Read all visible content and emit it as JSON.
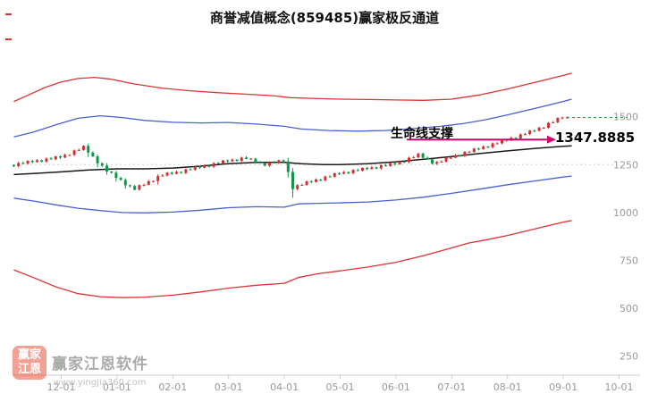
{
  "page": {
    "title": "商誉减值概念(859485)赢家极反通道"
  },
  "annotation": {
    "label": "生命线支撑",
    "price": "1347.8885"
  },
  "watermark": {
    "seal_top": "赢家",
    "seal_bottom": "江恩",
    "name": "赢家江恩软件",
    "url": "www.yingjia360.com"
  },
  "colors": {
    "up_candle": "#d03030",
    "down_candle": "#0f9648",
    "red_channel": "#dd3333",
    "blue_channel": "#4a5fd0",
    "lifeline": "#1a1a1a",
    "current_price": "#1fa84a",
    "arrow": "#d6006b",
    "axis_text": "#999999",
    "axis_line": "#cccccc"
  },
  "chart_data": {
    "type": "candlestick",
    "title": "商誉减值概念(859485)赢家极反通道",
    "x_ticks": [
      "12-01",
      "01-01",
      "02-01",
      "03-01",
      "04-01",
      "05-01",
      "06-01",
      "07-01",
      "08-01",
      "09-01",
      "10-01"
    ],
    "y_ticks": [
      1500,
      1250,
      1000,
      750,
      500,
      250
    ],
    "y_range_displayed": [
      150,
      1900
    ],
    "grid_dotted_level": 1250,
    "current_price_line": 1496,
    "lifeline_value": 1347.8885,
    "candles_start_month_offset": -0.85,
    "candles_per_month": 12,
    "first_open": 1248,
    "closes": [
      1242,
      1259,
      1255,
      1270,
      1264,
      1273,
      1266,
      1282,
      1278,
      1293,
      1287,
      1301,
      1301,
      1324,
      1327,
      1348,
      1313,
      1293,
      1257,
      1245,
      1214,
      1208,
      1181,
      1170,
      1142,
      1138,
      1119,
      1143,
      1145,
      1163,
      1164,
      1190,
      1193,
      1208,
      1202,
      1212,
      1207,
      1225,
      1223,
      1239,
      1234,
      1245,
      1239,
      1258,
      1255,
      1272,
      1267,
      1276,
      1270,
      1287,
      1280,
      1281,
      1262,
      1257,
      1245,
      1262,
      1258,
      1273,
      1267,
      1211,
      1122,
      1143,
      1144,
      1163,
      1160,
      1172,
      1168,
      1188,
      1187,
      1205,
      1202,
      1211,
      1205,
      1222,
      1218,
      1233,
      1227,
      1236,
      1230,
      1247,
      1243,
      1258,
      1252,
      1266,
      1264,
      1286,
      1288,
      1308,
      1286,
      1278,
      1255,
      1264,
      1266,
      1286,
      1286,
      1299,
      1296,
      1316,
      1316,
      1334,
      1331,
      1344,
      1341,
      1361,
      1361,
      1379,
      1376,
      1390,
      1387,
      1408,
      1409,
      1428,
      1426,
      1442,
      1443,
      1468,
      1471,
      1494,
      1496,
      1496
    ],
    "series_lines": {
      "upper_red": [
        [
          -0.85,
          1580
        ],
        [
          -0.6,
          1612
        ],
        [
          -0.3,
          1652
        ],
        [
          0,
          1682
        ],
        [
          0.3,
          1700
        ],
        [
          0.6,
          1706
        ],
        [
          0.9,
          1696
        ],
        [
          1.3,
          1672
        ],
        [
          1.8,
          1650
        ],
        [
          2.3,
          1636
        ],
        [
          2.8,
          1626
        ],
        [
          3.3,
          1618
        ],
        [
          3.8,
          1610
        ],
        [
          4.1,
          1600
        ],
        [
          4.5,
          1596
        ],
        [
          5,
          1592
        ],
        [
          5.5,
          1590
        ],
        [
          6,
          1588
        ],
        [
          6.5,
          1586
        ],
        [
          7,
          1592
        ],
        [
          7.5,
          1614
        ],
        [
          8,
          1645
        ],
        [
          8.5,
          1680
        ],
        [
          9,
          1716
        ],
        [
          9.15,
          1728
        ]
      ],
      "upper_blue": [
        [
          -0.85,
          1395
        ],
        [
          -0.5,
          1420
        ],
        [
          -0.1,
          1458
        ],
        [
          0.3,
          1492
        ],
        [
          0.7,
          1505
        ],
        [
          1.1,
          1496
        ],
        [
          1.5,
          1481
        ],
        [
          2,
          1471
        ],
        [
          2.5,
          1468
        ],
        [
          3,
          1470
        ],
        [
          3.5,
          1462
        ],
        [
          4,
          1450
        ],
        [
          4.3,
          1436
        ],
        [
          4.8,
          1428
        ],
        [
          5.3,
          1425
        ],
        [
          5.8,
          1428
        ],
        [
          6.3,
          1438
        ],
        [
          6.8,
          1450
        ],
        [
          7.2,
          1464
        ],
        [
          7.6,
          1484
        ],
        [
          8,
          1510
        ],
        [
          8.5,
          1544
        ],
        [
          9,
          1580
        ],
        [
          9.15,
          1592
        ]
      ],
      "lifeline_black": [
        [
          -0.85,
          1198
        ],
        [
          -0.4,
          1205
        ],
        [
          0,
          1212
        ],
        [
          0.5,
          1222
        ],
        [
          1,
          1228
        ],
        [
          1.5,
          1228
        ],
        [
          2,
          1232
        ],
        [
          2.5,
          1242
        ],
        [
          3,
          1255
        ],
        [
          3.5,
          1262
        ],
        [
          4,
          1262
        ],
        [
          4.3,
          1255
        ],
        [
          4.7,
          1250
        ],
        [
          5,
          1250
        ],
        [
          5.5,
          1255
        ],
        [
          6,
          1265
        ],
        [
          6.5,
          1278
        ],
        [
          7,
          1292
        ],
        [
          7.5,
          1308
        ],
        [
          8,
          1322
        ],
        [
          8.5,
          1335
        ],
        [
          9,
          1346
        ],
        [
          9.15,
          1348
        ]
      ],
      "lower_blue": [
        [
          -0.85,
          1075
        ],
        [
          -0.5,
          1060
        ],
        [
          -0.1,
          1040
        ],
        [
          0.3,
          1022
        ],
        [
          0.7,
          1010
        ],
        [
          1.1,
          1000
        ],
        [
          1.5,
          998
        ],
        [
          2,
          1002
        ],
        [
          2.5,
          1012
        ],
        [
          3,
          1025
        ],
        [
          3.5,
          1030
        ],
        [
          4,
          1028
        ],
        [
          4.25,
          1045
        ],
        [
          4.6,
          1048
        ],
        [
          5,
          1050
        ],
        [
          5.5,
          1055
        ],
        [
          6,
          1065
        ],
        [
          6.5,
          1080
        ],
        [
          7,
          1100
        ],
        [
          7.5,
          1122
        ],
        [
          8,
          1145
        ],
        [
          8.5,
          1165
        ],
        [
          9,
          1185
        ],
        [
          9.15,
          1190
        ]
      ],
      "lower_red": [
        [
          -0.85,
          700
        ],
        [
          -0.5,
          660
        ],
        [
          -0.1,
          612
        ],
        [
          0.3,
          576
        ],
        [
          0.7,
          560
        ],
        [
          1.1,
          555
        ],
        [
          1.5,
          558
        ],
        [
          2,
          568
        ],
        [
          2.5,
          585
        ],
        [
          3,
          605
        ],
        [
          3.5,
          620
        ],
        [
          4,
          630
        ],
        [
          4.25,
          660
        ],
        [
          4.6,
          680
        ],
        [
          5,
          695
        ],
        [
          5.5,
          715
        ],
        [
          6,
          740
        ],
        [
          6.5,
          775
        ],
        [
          7,
          815
        ],
        [
          7.3,
          840
        ],
        [
          7.6,
          856
        ],
        [
          8,
          880
        ],
        [
          8.5,
          915
        ],
        [
          9,
          950
        ],
        [
          9.15,
          958
        ]
      ]
    }
  }
}
